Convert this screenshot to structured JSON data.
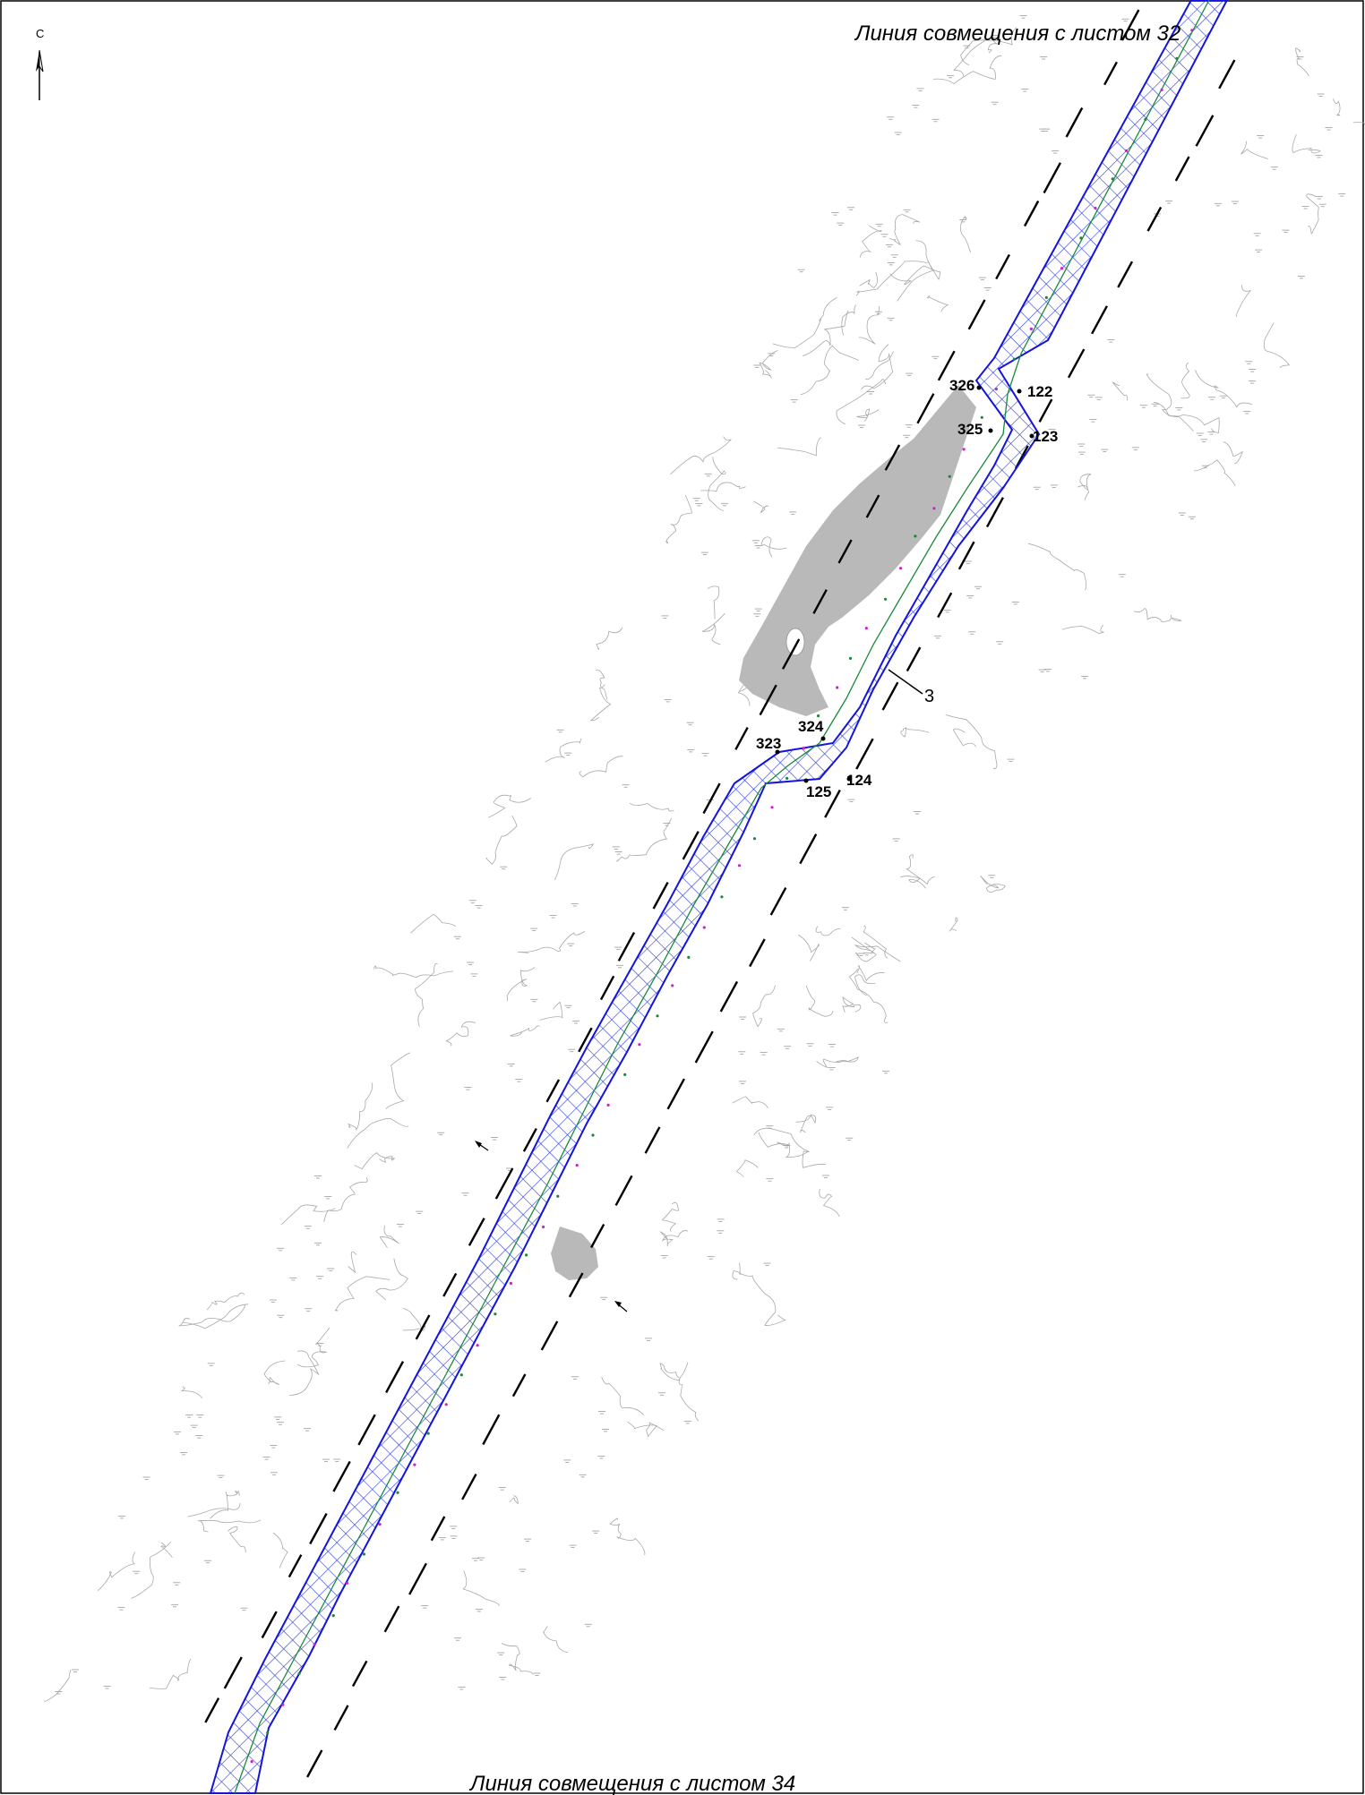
{
  "map": {
    "title_top": "Линия совмещения с листом 32",
    "title_bottom": "Линия совмещения с листом 34",
    "north_label": "С",
    "colors": {
      "corridor_fill": "#2a35e8",
      "corridor_edge": "#1515d9",
      "hatch": "#2b3be6",
      "axis_line": "#1a8a3a",
      "axis_points": "#d21dd2",
      "pond": "#b9b9b9",
      "contours": "#a8a8a8",
      "dash_lines": "#000000"
    },
    "points": [
      {
        "id": "p326",
        "label": "326"
      },
      {
        "id": "p122",
        "label": "122"
      },
      {
        "id": "p325",
        "label": "325"
      },
      {
        "id": "p123",
        "label": "123"
      },
      {
        "id": "p324",
        "label": "324"
      },
      {
        "id": "p323",
        "label": "323"
      },
      {
        "id": "p125",
        "label": "125"
      },
      {
        "id": "p124",
        "label": "124"
      }
    ],
    "callout_label": "3"
  }
}
